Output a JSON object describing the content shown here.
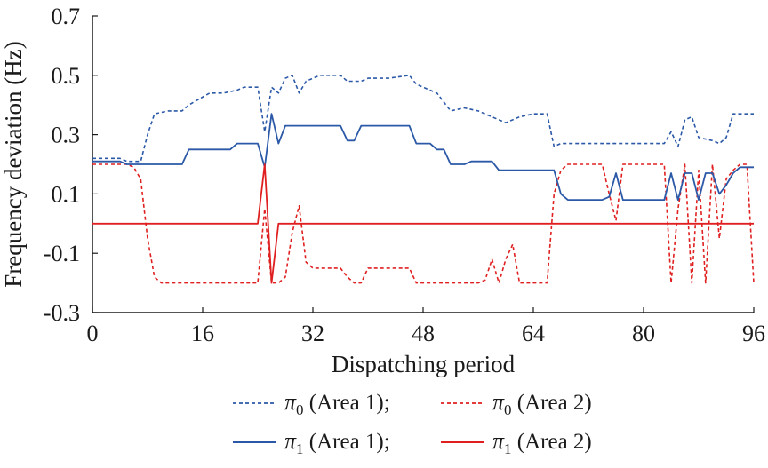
{
  "chart_data": {
    "type": "line",
    "xlabel": "Dispatching period",
    "ylabel": "Frequency deviation (Hz)",
    "xlim": [
      0,
      96
    ],
    "ylim": [
      -0.3,
      0.7
    ],
    "xticks": [
      "0",
      "16",
      "32",
      "48",
      "64",
      "80",
      "96"
    ],
    "xtick_values": [
      0,
      16,
      32,
      48,
      64,
      80,
      96
    ],
    "yticks": [
      "0.7",
      "0.5",
      "0.3",
      "0.1",
      "-0.1",
      "-0.3"
    ],
    "ytick_values": [
      0.7,
      0.5,
      0.3,
      0.1,
      -0.1,
      -0.3
    ],
    "grid": false,
    "legend_position": "bottom",
    "series": [
      {
        "name": "π0 (Area 1)",
        "symbol": "π",
        "subscript": "0",
        "area_label": " (Area 1);",
        "color": "#2b59a8",
        "dashed": true,
        "x": [
          0,
          4,
          5,
          7,
          8,
          9,
          11,
          13,
          14,
          17,
          19,
          21,
          22,
          24,
          25,
          26,
          27,
          28,
          29,
          30,
          31,
          33,
          36,
          37,
          39,
          40,
          43,
          46,
          47,
          48,
          49,
          50,
          52,
          54,
          56,
          58,
          60,
          62,
          64,
          66,
          67,
          68,
          71,
          74,
          77,
          80,
          83,
          84,
          85,
          86,
          87,
          88,
          90,
          91,
          92,
          93,
          94,
          96
        ],
        "y": [
          0.22,
          0.22,
          0.21,
          0.21,
          0.3,
          0.37,
          0.38,
          0.38,
          0.4,
          0.44,
          0.44,
          0.45,
          0.46,
          0.46,
          0.31,
          0.46,
          0.44,
          0.49,
          0.5,
          0.44,
          0.48,
          0.5,
          0.5,
          0.48,
          0.48,
          0.49,
          0.49,
          0.5,
          0.47,
          0.46,
          0.45,
          0.44,
          0.38,
          0.39,
          0.38,
          0.36,
          0.34,
          0.36,
          0.37,
          0.37,
          0.26,
          0.27,
          0.27,
          0.27,
          0.27,
          0.27,
          0.27,
          0.31,
          0.26,
          0.35,
          0.36,
          0.29,
          0.28,
          0.27,
          0.29,
          0.37,
          0.37,
          0.37
        ]
      },
      {
        "name": "π0 (Area 2)",
        "symbol": "π",
        "subscript": "0",
        "area_label": " (Area 2)",
        "color": "#e02020",
        "dashed": true,
        "x": [
          0,
          5,
          6,
          7,
          8,
          9,
          10,
          12,
          16,
          20,
          24,
          25,
          26,
          27,
          28,
          29,
          30,
          31,
          32,
          33,
          34,
          36,
          37,
          38,
          39,
          40,
          42,
          44,
          46,
          47,
          48,
          50,
          52,
          54,
          55,
          56,
          57,
          58,
          59,
          60,
          61,
          62,
          63,
          64,
          65,
          66,
          67,
          68,
          69,
          72,
          74,
          75,
          76,
          77,
          78,
          80,
          83,
          84,
          85,
          86,
          87,
          88,
          89,
          90,
          91,
          92,
          93,
          94,
          95,
          96
        ],
        "y": [
          0.2,
          0.2,
          0.19,
          0.15,
          -0.05,
          -0.18,
          -0.2,
          -0.2,
          -0.2,
          -0.2,
          -0.2,
          0.05,
          -0.2,
          -0.2,
          -0.18,
          -0.03,
          0.06,
          -0.13,
          -0.15,
          -0.15,
          -0.15,
          -0.15,
          -0.18,
          -0.2,
          -0.2,
          -0.15,
          -0.15,
          -0.15,
          -0.15,
          -0.2,
          -0.2,
          -0.2,
          -0.2,
          -0.2,
          -0.2,
          -0.2,
          -0.19,
          -0.12,
          -0.2,
          -0.12,
          -0.07,
          -0.2,
          -0.2,
          -0.2,
          -0.2,
          -0.2,
          0.1,
          0.18,
          0.2,
          0.2,
          0.2,
          0.1,
          0.01,
          0.2,
          0.2,
          0.2,
          0.2,
          -0.2,
          0.05,
          0.2,
          -0.2,
          0.18,
          -0.2,
          0.2,
          -0.05,
          0.15,
          0.18,
          0.2,
          0.2,
          -0.2
        ]
      },
      {
        "name": "π1 (Area 1)",
        "symbol": "π",
        "subscript": "1",
        "area_label": " (Area 1);",
        "color": "#2b59a8",
        "dashed": false,
        "x": [
          0,
          4,
          5,
          13,
          14,
          20,
          21,
          24,
          25,
          26,
          27,
          28,
          35,
          36,
          37,
          38,
          39,
          46,
          47,
          49,
          50,
          51,
          52,
          54,
          55,
          58,
          59,
          66,
          67,
          68,
          69,
          74,
          75,
          76,
          77,
          83,
          84,
          85,
          86,
          87,
          88,
          89,
          90,
          91,
          92,
          93,
          94,
          96
        ],
        "y": [
          0.21,
          0.21,
          0.2,
          0.2,
          0.25,
          0.25,
          0.27,
          0.27,
          0.19,
          0.37,
          0.27,
          0.33,
          0.33,
          0.33,
          0.28,
          0.28,
          0.33,
          0.33,
          0.27,
          0.27,
          0.25,
          0.25,
          0.2,
          0.2,
          0.21,
          0.21,
          0.18,
          0.18,
          0.18,
          0.1,
          0.08,
          0.08,
          0.09,
          0.17,
          0.08,
          0.08,
          0.17,
          0.08,
          0.17,
          0.17,
          0.08,
          0.17,
          0.17,
          0.1,
          0.13,
          0.17,
          0.19,
          0.19
        ]
      },
      {
        "name": "π1 (Area 2)",
        "symbol": "π",
        "subscript": "1",
        "area_label": " (Area 2)",
        "color": "#e02020",
        "dashed": false,
        "x": [
          0,
          24,
          25,
          26,
          27,
          96
        ],
        "y": [
          0.0,
          0.0,
          0.2,
          -0.2,
          0.0,
          0.0
        ]
      }
    ]
  }
}
